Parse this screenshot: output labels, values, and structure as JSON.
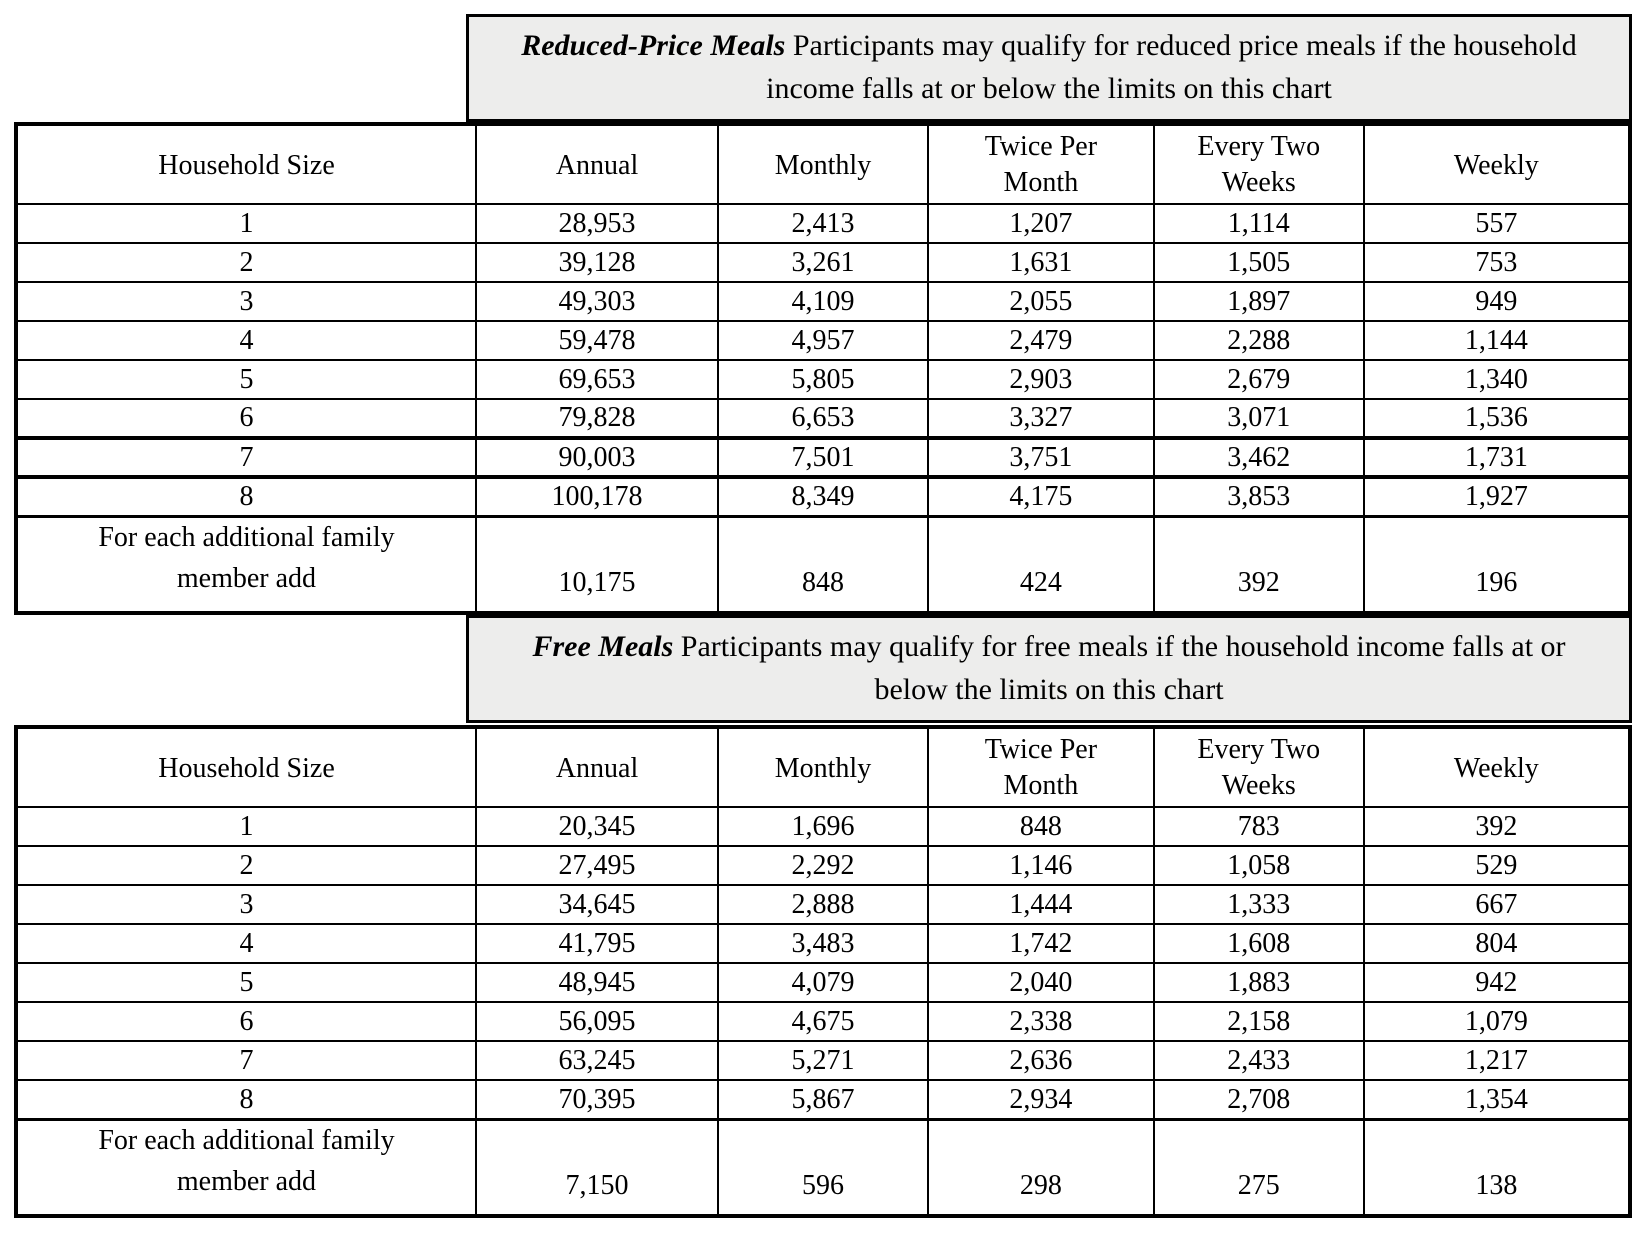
{
  "page": {
    "background": "#ffffff",
    "banner_background": "#ededec",
    "border_color": "#000000",
    "text_color": "#000000"
  },
  "columns": [
    "Household Size",
    "Annual",
    "Monthly",
    "Twice Per Month",
    "Every Two Weeks",
    "Weekly"
  ],
  "sections": [
    {
      "id": "reduced-price",
      "banner": {
        "title": "Reduced-Price Meals",
        "text": "Participants may qualify for reduced price meals if the household income falls at or below the limits on this chart"
      },
      "table": {
        "columns": [
          "Household Size",
          "Annual",
          "Monthly",
          "Twice Per Month",
          "Every Two Weeks",
          "Weekly"
        ],
        "rows": [
          [
            "1",
            "28,953",
            "2,413",
            "1,207",
            "1,114",
            "557"
          ],
          [
            "2",
            "39,128",
            "3,261",
            "1,631",
            "1,505",
            "753"
          ],
          [
            "3",
            "49,303",
            "4,109",
            "2,055",
            "1,897",
            "949"
          ],
          [
            "4",
            "59,478",
            "4,957",
            "2,479",
            "2,288",
            "1,144"
          ],
          [
            "5",
            "69,653",
            "5,805",
            "2,903",
            "2,679",
            "1,340"
          ],
          [
            "6",
            "79,828",
            "6,653",
            "3,327",
            "3,071",
            "1,536"
          ],
          [
            "7",
            "90,003",
            "7,501",
            "3,751",
            "3,462",
            "1,731"
          ],
          [
            "8",
            "100,178",
            "8,349",
            "4,175",
            "3,853",
            "1,927"
          ]
        ],
        "footer_row": {
          "label": "For each additional family member add",
          "values": [
            "10,175",
            "848",
            "424",
            "392",
            "196"
          ]
        }
      }
    },
    {
      "id": "free-meals",
      "banner": {
        "title": "Free Meals",
        "text": "Participants may qualify for free meals if the household income falls at or below the limits on this chart"
      },
      "table": {
        "columns": [
          "Household Size",
          "Annual",
          "Monthly",
          "Twice Per Month",
          "Every Two Weeks",
          "Weekly"
        ],
        "rows": [
          [
            "1",
            "20,345",
            "1,696",
            "848",
            "783",
            "392"
          ],
          [
            "2",
            "27,495",
            "2,292",
            "1,146",
            "1,058",
            "529"
          ],
          [
            "3",
            "34,645",
            "2,888",
            "1,444",
            "1,333",
            "667"
          ],
          [
            "4",
            "41,795",
            "3,483",
            "1,742",
            "1,608",
            "804"
          ],
          [
            "5",
            "48,945",
            "4,079",
            "2,040",
            "1,883",
            "942"
          ],
          [
            "6",
            "56,095",
            "4,675",
            "2,338",
            "2,158",
            "1,079"
          ],
          [
            "7",
            "63,245",
            "5,271",
            "2,636",
            "2,433",
            "1,217"
          ],
          [
            "8",
            "70,395",
            "5,867",
            "2,934",
            "2,708",
            "1,354"
          ]
        ],
        "footer_row": {
          "label": "For each additional family member add",
          "values": [
            "7,150",
            "596",
            "298",
            "275",
            "138"
          ]
        }
      }
    }
  ]
}
